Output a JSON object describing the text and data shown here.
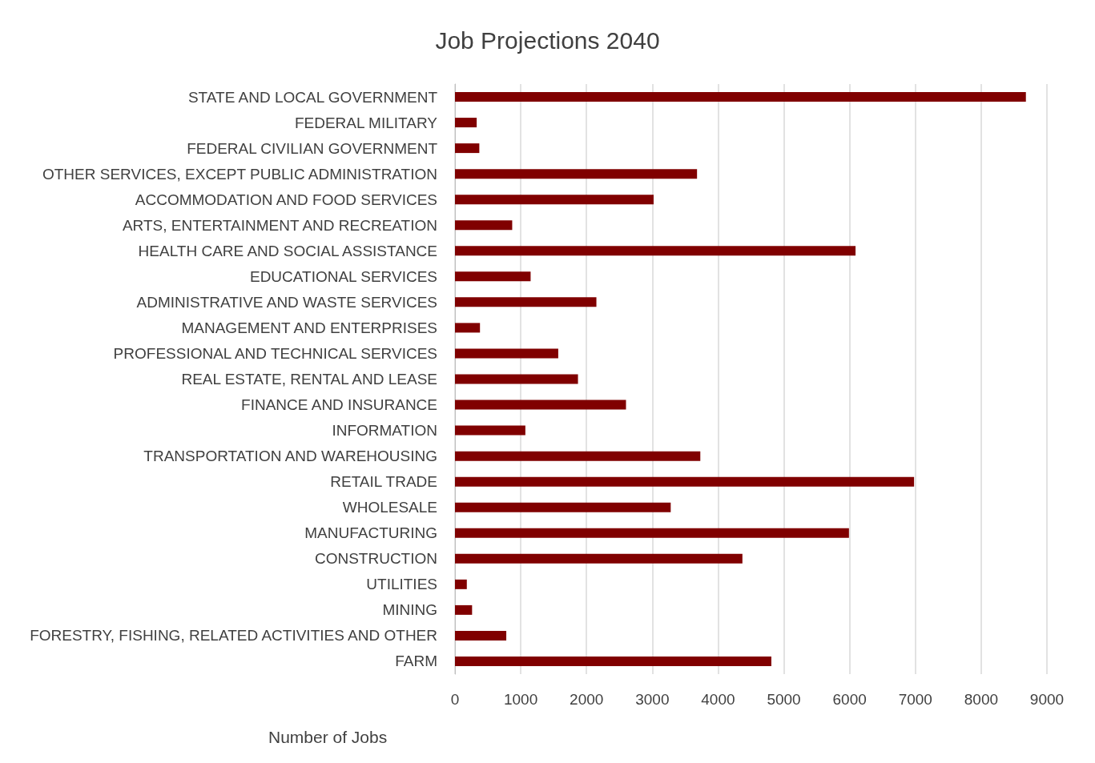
{
  "chart_data": {
    "type": "bar",
    "orientation": "horizontal",
    "title": "Job Projections 2040",
    "xlabel": "Number of Jobs",
    "categories": [
      "STATE AND LOCAL GOVERNMENT",
      "FEDERAL MILITARY",
      "FEDERAL CIVILIAN GOVERNMENT",
      "OTHER SERVICES, EXCEPT PUBLIC ADMINISTRATION",
      "ACCOMMODATION AND FOOD SERVICES",
      "ARTS, ENTERTAINMENT AND RECREATION",
      "HEALTH CARE AND SOCIAL ASSISTANCE",
      "EDUCATIONAL SERVICES",
      "ADMINISTRATIVE AND WASTE SERVICES",
      "MANAGEMENT AND ENTERPRISES",
      "PROFESSIONAL AND TECHNICAL SERVICES",
      "REAL ESTATE, RENTAL AND LEASE",
      "FINANCE AND INSURANCE",
      "INFORMATION",
      "TRANSPORTATION AND WAREHOUSING",
      "RETAIL TRADE",
      "WHOLESALE",
      "MANUFACTURING",
      "CONSTRUCTION",
      "UTILITIES",
      "MINING",
      "FORESTRY, FISHING, RELATED ACTIVITIES AND OTHER",
      "FARM"
    ],
    "values": [
      8680,
      330,
      370,
      3680,
      3020,
      870,
      6090,
      1150,
      2150,
      380,
      1570,
      1870,
      2600,
      1070,
      3730,
      6980,
      3280,
      5990,
      4370,
      180,
      260,
      780,
      4810
    ],
    "color": "#800000",
    "xlim": [
      0,
      9000
    ],
    "xticks": [
      0,
      1000,
      2000,
      3000,
      4000,
      5000,
      6000,
      7000,
      8000,
      9000
    ],
    "grid": "x"
  }
}
